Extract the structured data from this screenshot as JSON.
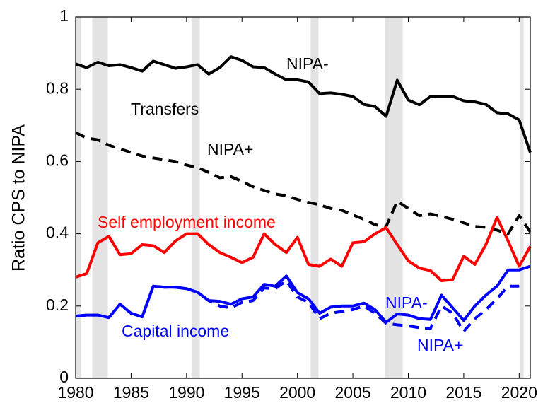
{
  "chart_data": {
    "type": "line",
    "y_label": "Ratio CPS to NIPA",
    "x": [
      1980,
      1981,
      1982,
      1983,
      1984,
      1985,
      1986,
      1987,
      1988,
      1989,
      1990,
      1991,
      1992,
      1993,
      1994,
      1995,
      1996,
      1997,
      1998,
      1999,
      2000,
      2001,
      2002,
      2003,
      2004,
      2005,
      2006,
      2007,
      2008,
      2009,
      2010,
      2011,
      2012,
      2013,
      2014,
      2015,
      2016,
      2017,
      2018,
      2019,
      2020,
      2021
    ],
    "series": [
      {
        "color": "#000000",
        "dash": false,
        "values": [
          0.87,
          0.86,
          0.875,
          0.865,
          0.868,
          0.86,
          0.85,
          0.878,
          0.868,
          0.858,
          0.862,
          0.868,
          0.842,
          0.86,
          0.89,
          0.88,
          0.862,
          0.86,
          0.842,
          0.826,
          0.826,
          0.82,
          0.788,
          0.79,
          0.786,
          0.78,
          0.758,
          0.752,
          0.725,
          0.825,
          0.77,
          0.757,
          0.78,
          0.78,
          0.78,
          0.768,
          0.765,
          0.758,
          0.735,
          0.732,
          0.715,
          0.625
        ]
      },
      {
        "color": "#000000",
        "dash": true,
        "values": [
          0.68,
          0.665,
          0.66,
          0.645,
          0.635,
          0.625,
          0.615,
          0.61,
          0.605,
          0.6,
          0.59,
          0.583,
          0.57,
          0.555,
          0.558,
          0.545,
          0.53,
          0.52,
          0.51,
          0.505,
          0.495,
          0.487,
          0.48,
          0.47,
          0.465,
          0.452,
          0.44,
          0.425,
          0.42,
          0.49,
          0.47,
          0.45,
          0.455,
          0.448,
          0.44,
          0.43,
          0.42,
          0.418,
          0.41,
          0.4,
          0.45,
          0.405
        ]
      },
      {
        "color": "#ff0000",
        "dash": false,
        "values": [
          0.28,
          0.29,
          0.375,
          0.393,
          0.342,
          0.345,
          0.37,
          0.367,
          0.348,
          0.38,
          0.4,
          0.4,
          0.37,
          0.348,
          0.335,
          0.32,
          0.335,
          0.4,
          0.37,
          0.348,
          0.39,
          0.315,
          0.31,
          0.33,
          0.31,
          0.375,
          0.378,
          0.4,
          0.417,
          0.37,
          0.325,
          0.305,
          0.298,
          0.27,
          0.273,
          0.338,
          0.315,
          0.37,
          0.445,
          0.38,
          0.31,
          0.365
        ]
      },
      {
        "color": "#0000ff",
        "dash": false,
        "values": [
          0.172,
          0.175,
          0.175,
          0.168,
          0.205,
          0.18,
          0.17,
          0.255,
          0.252,
          0.252,
          0.248,
          0.238,
          0.215,
          0.213,
          0.205,
          0.22,
          0.225,
          0.26,
          0.255,
          0.283,
          0.237,
          0.22,
          0.18,
          0.197,
          0.2,
          0.2,
          0.208,
          0.19,
          0.155,
          0.178,
          0.175,
          0.165,
          0.163,
          0.23,
          0.195,
          0.16,
          0.2,
          0.23,
          0.255,
          0.3,
          0.3,
          0.31
        ]
      },
      {
        "color": "#0000ff",
        "dash": true,
        "values": [
          0.172,
          0.175,
          0.175,
          0.168,
          0.205,
          0.18,
          0.17,
          0.255,
          0.252,
          0.252,
          0.248,
          0.238,
          0.215,
          0.2,
          0.195,
          0.21,
          0.215,
          0.25,
          0.248,
          0.27,
          0.225,
          0.21,
          0.165,
          0.18,
          0.185,
          0.19,
          0.2,
          0.18,
          0.152,
          0.148,
          0.145,
          0.14,
          0.138,
          0.2,
          0.18,
          0.13,
          0.165,
          0.19,
          0.22,
          0.255,
          0.255,
          null
        ]
      }
    ],
    "annotations": [
      {
        "text": "NIPA-",
        "color": "#000000"
      },
      {
        "text": "Transfers",
        "color": "#000000"
      },
      {
        "text": "NIPA+",
        "color": "#000000"
      },
      {
        "text": "Self employment income",
        "color": "#ff0000"
      },
      {
        "text": "Capital income",
        "color": "#0000ff"
      },
      {
        "text": "NIPA-",
        "color": "#0000ff"
      },
      {
        "text": "NIPA+",
        "color": "#0000ff"
      }
    ],
    "shaded": [
      [
        1980,
        1980.5
      ],
      [
        1981.5,
        1982.9
      ],
      [
        1990.5,
        1991.2
      ],
      [
        2001.2,
        2001.9
      ],
      [
        2007.9,
        2009.5
      ],
      [
        2020.1,
        2020.4
      ]
    ],
    "shade_color": "#e3e3e3",
    "xlim": [
      1980,
      2021
    ],
    "ylim": [
      0,
      1
    ],
    "xticks": [
      1980,
      1985,
      1990,
      1995,
      2000,
      2005,
      2010,
      2015,
      2020
    ],
    "yticks": [
      0,
      0.2,
      0.4,
      0.6,
      0.8,
      1
    ]
  }
}
